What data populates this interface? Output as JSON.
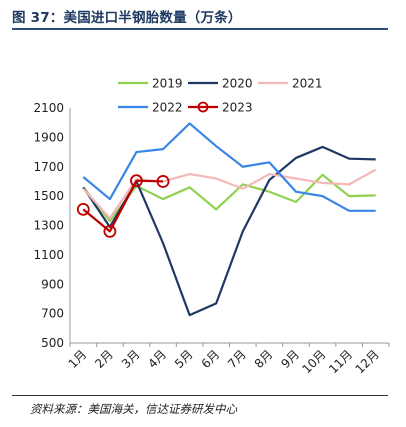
{
  "figure": {
    "label": "图 37：",
    "title": "美国进口半钢胎数量（万条）",
    "source": "资料来源：美国海关，信达证券研发中心"
  },
  "chart_data": {
    "type": "line",
    "categories": [
      "1月",
      "2月",
      "3月",
      "4月",
      "5月",
      "6月",
      "7月",
      "8月",
      "9月",
      "10月",
      "11月",
      "12月"
    ],
    "ylim": [
      500,
      2100
    ],
    "yticks": [
      500,
      700,
      900,
      1100,
      1300,
      1500,
      1700,
      1900,
      2100
    ],
    "grid": false,
    "legend_position": "top",
    "series": [
      {
        "name": "2019",
        "color": "#92d050",
        "marker": "none",
        "values": [
          1560,
          1330,
          1570,
          1480,
          1560,
          1410,
          1580,
          1530,
          1460,
          1645,
          1500,
          1505
        ]
      },
      {
        "name": "2020",
        "color": "#1f3864",
        "marker": "none",
        "values": [
          1560,
          1290,
          1600,
          1180,
          690,
          770,
          1260,
          1610,
          1760,
          1835,
          1755,
          1750
        ]
      },
      {
        "name": "2021",
        "color": "#f4b8b8",
        "marker": "none",
        "values": [
          1550,
          1350,
          1615,
          1600,
          1650,
          1620,
          1550,
          1650,
          1620,
          1590,
          1580,
          1680
        ]
      },
      {
        "name": "2022",
        "color": "#3a85e8",
        "marker": "none",
        "values": [
          1630,
          1480,
          1800,
          1820,
          1995,
          1840,
          1700,
          1730,
          1530,
          1500,
          1400,
          1400
        ]
      },
      {
        "name": "2023",
        "color": "#c00000",
        "marker": "circle",
        "values": [
          1410,
          1260,
          1605,
          1600,
          null,
          null,
          null,
          null,
          null,
          null,
          null,
          null
        ]
      }
    ]
  }
}
